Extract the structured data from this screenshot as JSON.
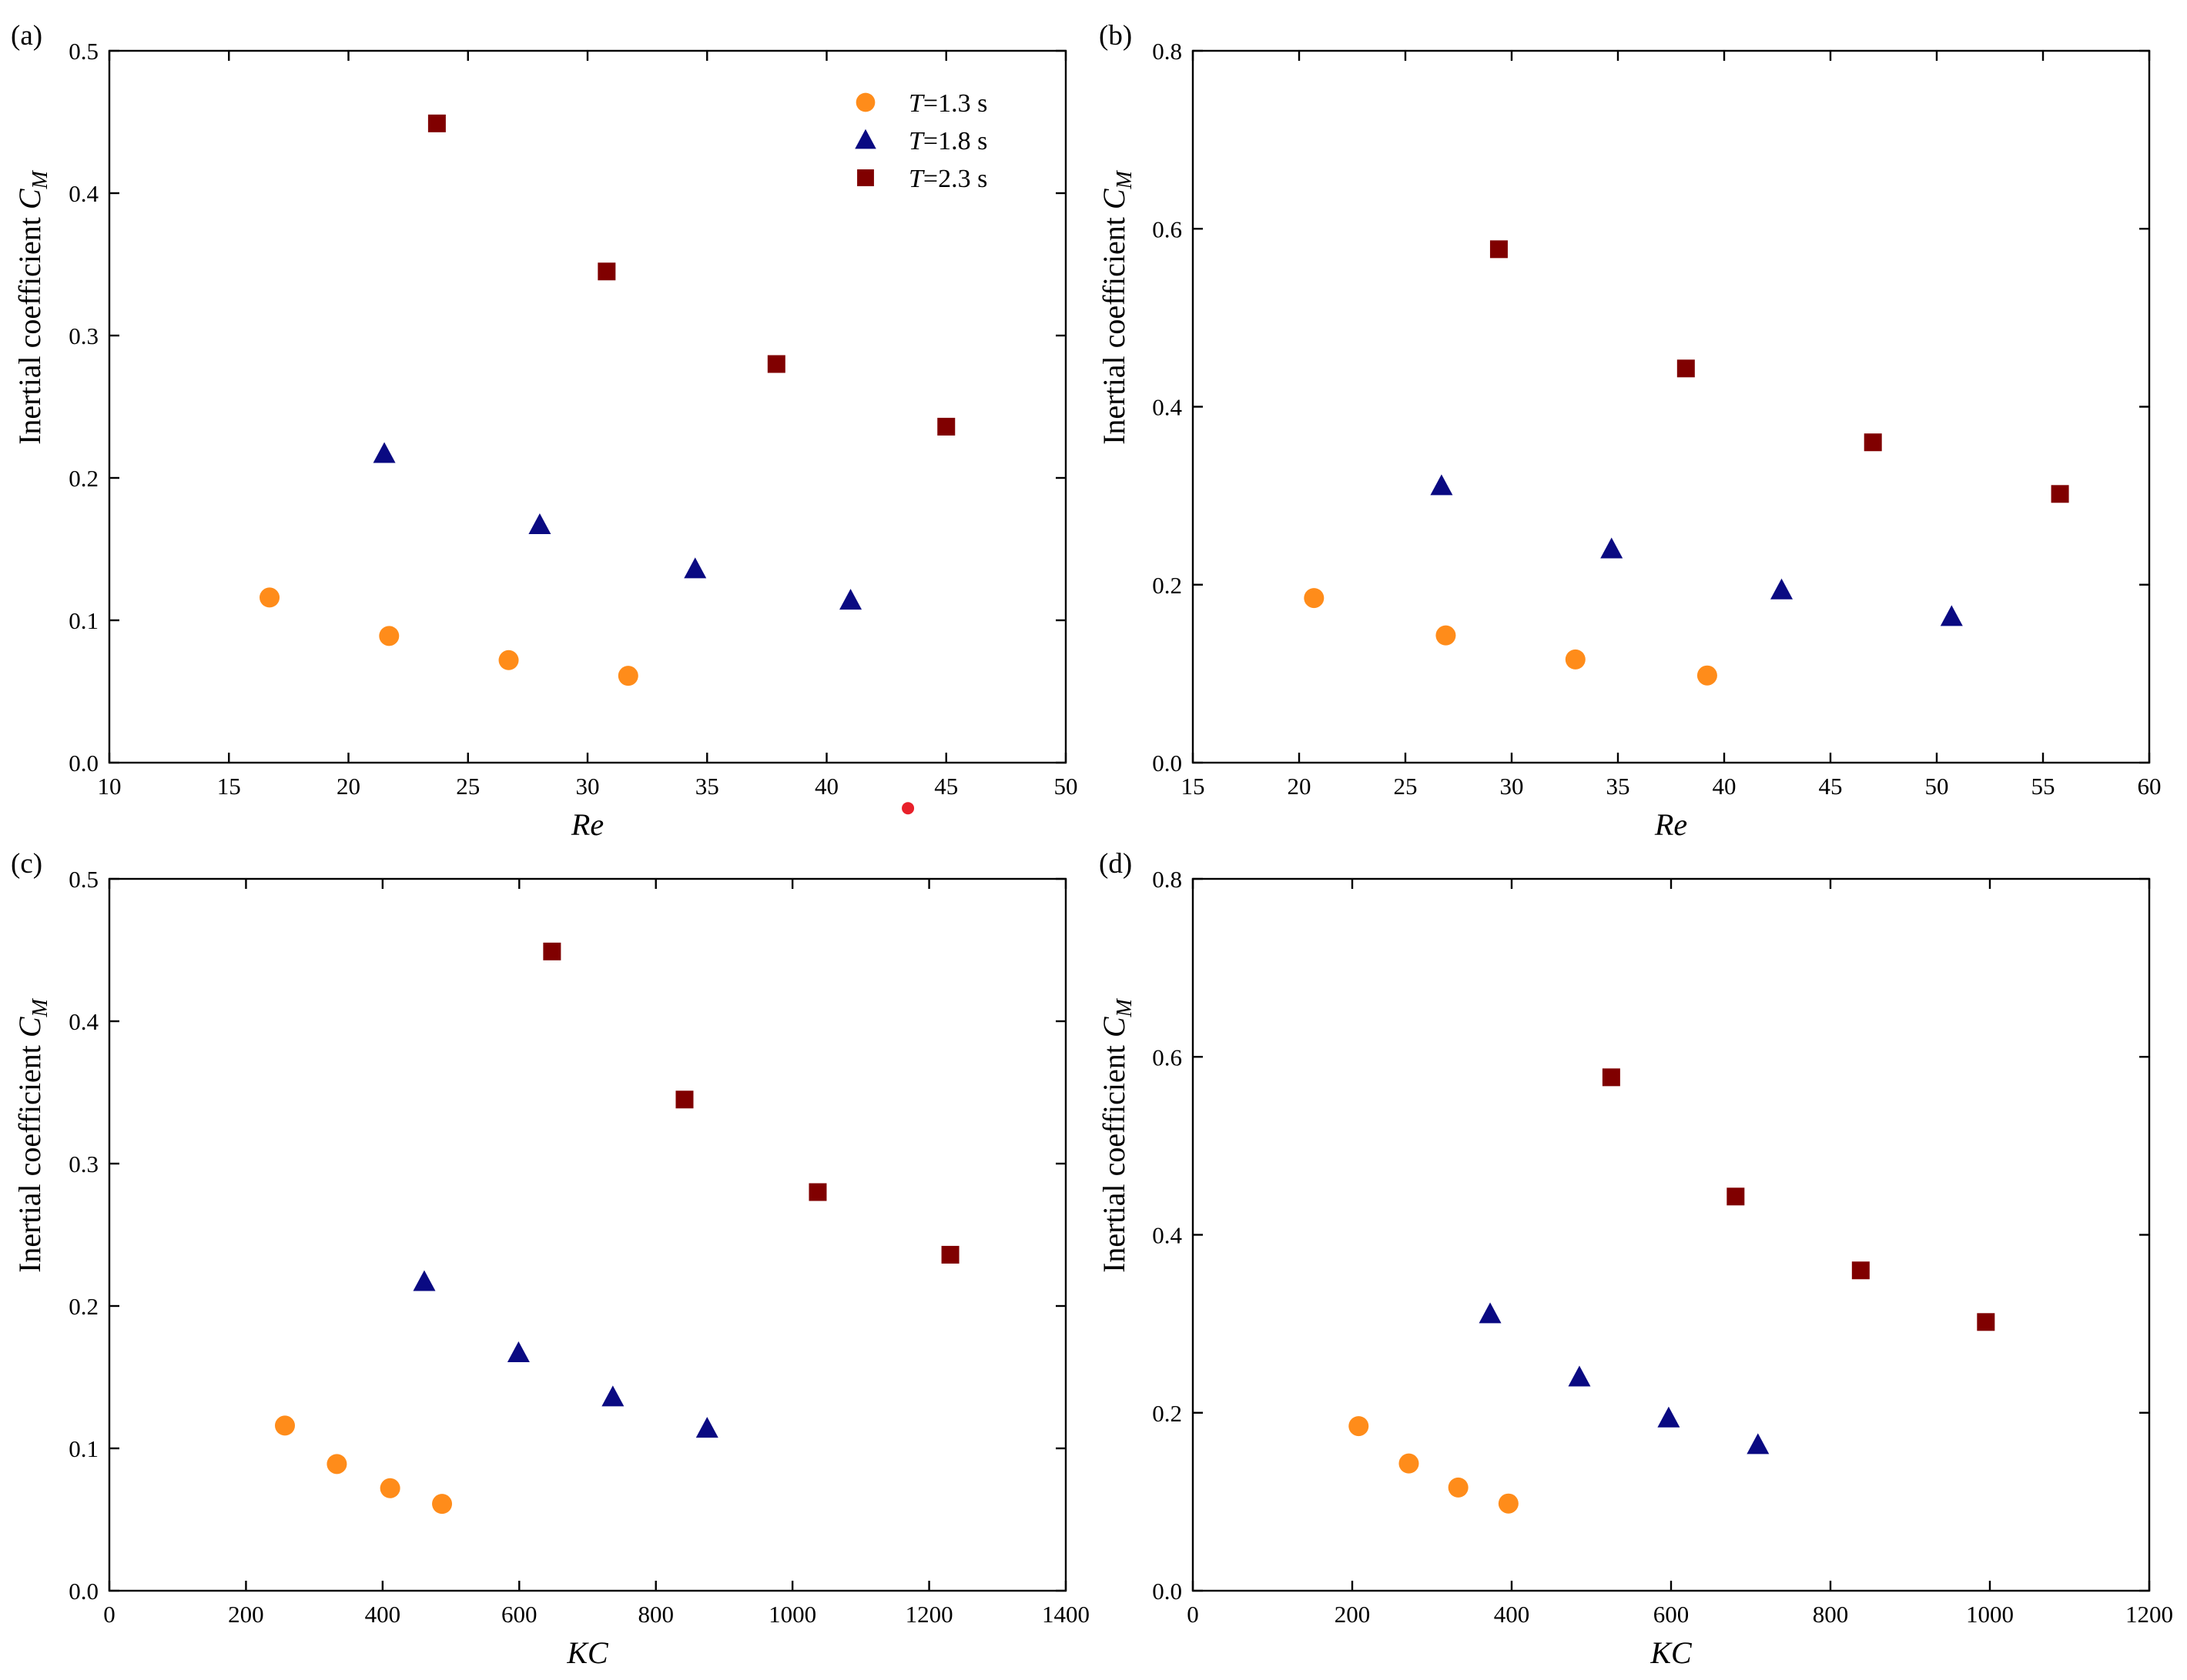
{
  "colors": {
    "t13": "#ff8c1a",
    "t18": "#0a0a82",
    "t23": "#800000",
    "stray_dot": "#e8202a"
  },
  "legend": [
    {
      "prefix": "T",
      "label": "=1.3 s",
      "shape": "circle"
    },
    {
      "prefix": "T",
      "label": "=1.8 s",
      "shape": "triangle"
    },
    {
      "prefix": "T",
      "label": "=2.3 s",
      "shape": "square"
    }
  ],
  "chart_data": [
    {
      "type": "scatter",
      "panel_label": "(a)",
      "xlabel": "Re",
      "ylabel_main": "Inertial coefficient ",
      "ylabel_symbol": "C",
      "ylabel_sub": "M",
      "xlim": [
        10,
        50
      ],
      "ylim": [
        0,
        0.5
      ],
      "xticks": [
        "10",
        "15",
        "20",
        "25",
        "30",
        "35",
        "40",
        "45",
        "50"
      ],
      "yticks": [
        "0.0",
        "0.1",
        "0.2",
        "0.3",
        "0.4",
        "0.5"
      ],
      "show_legend": true,
      "series": [
        {
          "name": "T=1.3 s",
          "marker": "circle",
          "x": [
            16.7,
            21.7,
            26.7,
            31.7
          ],
          "y": [
            0.116,
            0.089,
            0.072,
            0.061
          ]
        },
        {
          "name": "T=1.8 s",
          "marker": "triangle",
          "x": [
            21.5,
            28.0,
            34.5,
            41.0
          ],
          "y": [
            0.217,
            0.167,
            0.136,
            0.114
          ]
        },
        {
          "name": "T=2.3 s",
          "marker": "square",
          "x": [
            23.7,
            30.8,
            37.9,
            45.0
          ],
          "y": [
            0.449,
            0.345,
            0.28,
            0.236
          ]
        }
      ]
    },
    {
      "type": "scatter",
      "panel_label": "(b)",
      "xlabel": "Re",
      "ylabel_main": "Inertial coefficient ",
      "ylabel_symbol": "C",
      "ylabel_sub": "M",
      "xlim": [
        15,
        60
      ],
      "ylim": [
        0,
        0.8
      ],
      "xticks": [
        "15",
        "20",
        "25",
        "30",
        "35",
        "40",
        "45",
        "50",
        "55",
        "60"
      ],
      "yticks": [
        "0.0",
        "0.2",
        "0.4",
        "0.6",
        "0.8"
      ],
      "show_legend": false,
      "series": [
        {
          "name": "T=1.3 s",
          "marker": "circle",
          "x": [
            20.7,
            26.9,
            33.0,
            39.2
          ],
          "y": [
            0.185,
            0.143,
            0.116,
            0.098
          ]
        },
        {
          "name": "T=1.8 s",
          "marker": "triangle",
          "x": [
            26.7,
            34.7,
            42.7,
            50.7
          ],
          "y": [
            0.311,
            0.24,
            0.194,
            0.164
          ]
        },
        {
          "name": "T=2.3 s",
          "marker": "square",
          "x": [
            29.4,
            38.2,
            47.0,
            55.8
          ],
          "y": [
            0.577,
            0.443,
            0.36,
            0.302
          ]
        }
      ]
    },
    {
      "type": "scatter",
      "panel_label": "(c)",
      "xlabel": "KC",
      "ylabel_main": "Inertial coefficient ",
      "ylabel_symbol": "C",
      "ylabel_sub": "M",
      "xlim": [
        0,
        1400
      ],
      "ylim": [
        0,
        0.5
      ],
      "xticks": [
        "0",
        "200",
        "400",
        "600",
        "800",
        "1000",
        "1200",
        "1400"
      ],
      "yticks": [
        "0.0",
        "0.1",
        "0.2",
        "0.3",
        "0.4",
        "0.5"
      ],
      "show_legend": false,
      "series": [
        {
          "name": "T=1.3 s",
          "marker": "circle",
          "x": [
            257,
            333,
            411,
            487
          ],
          "y": [
            0.116,
            0.089,
            0.072,
            0.061
          ]
        },
        {
          "name": "T=1.8 s",
          "marker": "triangle",
          "x": [
            461,
            599,
            737,
            875
          ],
          "y": [
            0.217,
            0.167,
            0.136,
            0.114
          ]
        },
        {
          "name": "T=2.3 s",
          "marker": "square",
          "x": [
            648,
            842,
            1037,
            1231
          ],
          "y": [
            0.449,
            0.345,
            0.28,
            0.236
          ]
        }
      ]
    },
    {
      "type": "scatter",
      "panel_label": "(d)",
      "xlabel": "KC",
      "ylabel_main": "Inertial coefficient ",
      "ylabel_symbol": "C",
      "ylabel_sub": "M",
      "xlim": [
        0,
        1200
      ],
      "ylim": [
        0,
        0.8
      ],
      "xticks": [
        "0",
        "200",
        "400",
        "600",
        "800",
        "1000",
        "1200"
      ],
      "yticks": [
        "0.0",
        "0.2",
        "0.4",
        "0.6",
        "0.8"
      ],
      "show_legend": false,
      "series": [
        {
          "name": "T=1.3 s",
          "marker": "circle",
          "x": [
            208,
            271,
            333,
            396
          ],
          "y": [
            0.185,
            0.143,
            0.116,
            0.098
          ]
        },
        {
          "name": "T=1.8 s",
          "marker": "triangle",
          "x": [
            373,
            485,
            597,
            709
          ],
          "y": [
            0.311,
            0.24,
            0.194,
            0.164
          ]
        },
        {
          "name": "T=2.3 s",
          "marker": "square",
          "x": [
            525,
            681,
            838,
            995
          ],
          "y": [
            0.577,
            0.443,
            0.36,
            0.302
          ]
        }
      ]
    }
  ],
  "artifact": {
    "panel": 0,
    "x": 43.4,
    "y": -0.032
  }
}
